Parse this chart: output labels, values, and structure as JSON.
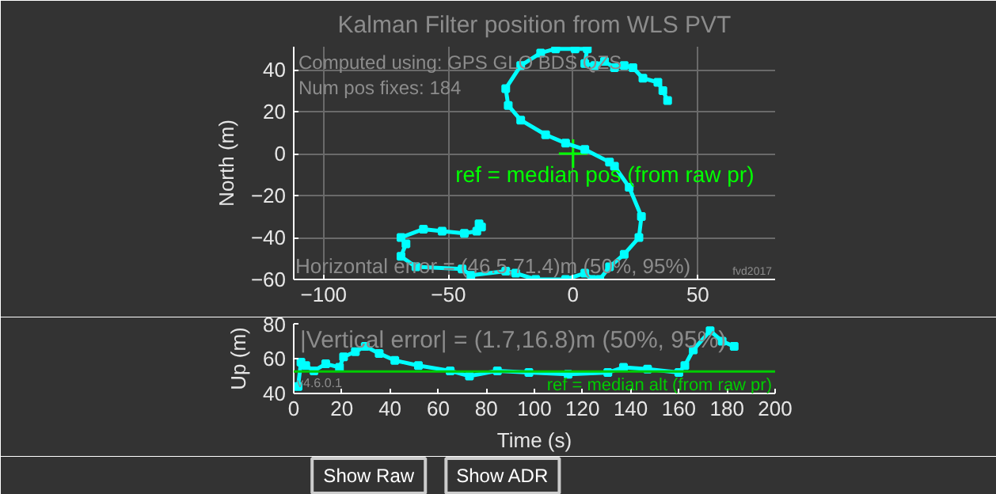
{
  "chart_data": [
    {
      "type": "line",
      "title": "Kalman Filter position from WLS PVT",
      "xlabel": null,
      "ylabel": "North (m)",
      "xlim": [
        -112,
        81
      ],
      "ylim": [
        -60,
        51
      ],
      "xticks": [
        -100,
        -50,
        0,
        50
      ],
      "yticks": [
        -60,
        -40,
        -20,
        0,
        20,
        40
      ],
      "grid": true,
      "marker": "square",
      "annotations": [
        "Computed using: GPS GLO BDS QZS",
        "Num pos fixes: 184",
        "Horizontal error  = (46.5,71.4)m (50%, 95%)",
        "fvd2017",
        {
          "text": "ref = median pos (from raw pr)",
          "x": 0,
          "y": 0
        }
      ],
      "series": [
        {
          "color": "#00ffff",
          "x": [
            -37.7,
            -36.7,
            -38.6,
            -43.6,
            -52.5,
            -60,
            -69,
            -67,
            -69,
            -63,
            -44.5,
            -41,
            -27,
            -23,
            -15,
            -3,
            4.7,
            7.7,
            10.7,
            14.6,
            20.5,
            26.4,
            27.4,
            22.5,
            16.6,
            14.6,
            4.7,
            -3,
            -11,
            -21,
            -26,
            -27,
            -21,
            -13,
            -7,
            0.8,
            5.7,
            4.7,
            8.7,
            12.6,
            16.6,
            20.5,
            24,
            28,
            34,
            36,
            37.9
          ],
          "values": [
            -33.5,
            -35,
            -37,
            -38,
            -37,
            -36,
            -40,
            -43,
            -49,
            -54,
            -55,
            -58,
            -56,
            -57,
            -60,
            -60,
            -57,
            -60,
            -60,
            -54,
            -48,
            -40,
            -30,
            -16,
            -6,
            -4,
            2,
            5,
            9,
            16,
            23,
            31,
            42,
            48,
            50,
            50,
            50,
            43,
            42,
            44,
            41,
            42,
            41,
            36,
            34,
            30,
            25.3
          ]
        },
        {
          "type": "scatter",
          "marker": "cross",
          "color": "#00ff00",
          "x": [
            0
          ],
          "values": [
            0
          ]
        }
      ]
    },
    {
      "type": "line",
      "xlabel": "Time (s)",
      "ylabel": "Up (m)",
      "xlim": [
        0,
        200
      ],
      "ylim": [
        40,
        80
      ],
      "xticks": [
        0,
        20,
        40,
        60,
        80,
        100,
        120,
        140,
        160,
        180,
        200
      ],
      "yticks": [
        40,
        60,
        80
      ],
      "marker": "square",
      "annotations": [
        "|Vertical error| = (1.7,16.8)m (50%, 95%)",
        "v4.6.0.1",
        "Show Raw",
        "Show ADR"
      ],
      "ref_lines": [
        {
          "axis": "y",
          "value": 52.6,
          "label": "ref = median alt (from raw pr)",
          "color": "#00cc00"
        }
      ],
      "series": [
        {
          "color": "#00ffff",
          "x": [
            1.8,
            3,
            5,
            8.4,
            13.3,
            19,
            20.7,
            25.6,
            29.7,
            35.5,
            42,
            51.8,
            65,
            73,
            84.6,
            97.7,
            114,
            130.5,
            137,
            147,
            160,
            162.5,
            166,
            173,
            178,
            183
          ],
          "values": [
            44,
            58,
            56,
            53,
            57,
            55,
            61,
            64,
            67,
            63,
            59,
            56,
            53,
            50,
            53,
            52,
            51,
            52,
            55,
            54,
            52,
            56,
            65,
            76,
            70,
            67
          ]
        }
      ]
    }
  ]
}
